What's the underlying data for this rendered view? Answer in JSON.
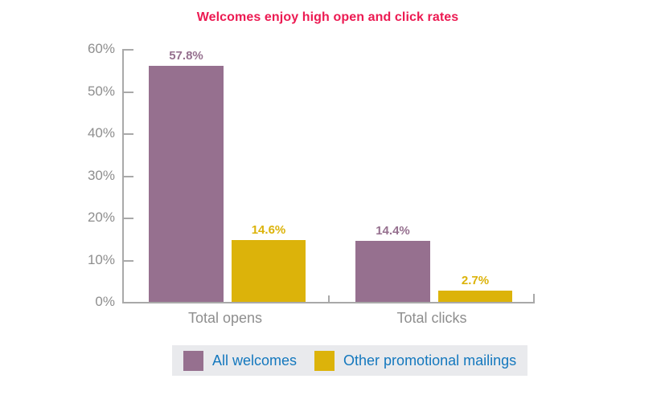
{
  "chart_data": {
    "type": "bar",
    "title": "Welcomes enjoy high open and click rates",
    "categories": [
      "Total opens",
      "Total clicks"
    ],
    "series": [
      {
        "name": "All welcomes",
        "color": "#96708F",
        "values": [
          57.8,
          14.4
        ],
        "display": [
          "57.8%",
          "14.4%"
        ]
      },
      {
        "name": "Other promotional mailings",
        "color": "#DCB30A",
        "values": [
          14.6,
          2.7
        ],
        "display": [
          "14.6%",
          "2.7%"
        ]
      }
    ],
    "xlabel": "",
    "ylabel": "",
    "ylim": [
      0,
      60
    ],
    "y_ticks": [
      0,
      10,
      20,
      30,
      40,
      50,
      60
    ],
    "y_tick_suffix": "%",
    "grid": false,
    "legend_position": "bottom"
  },
  "styles": {
    "title_color": "#EC1A52",
    "axis_color": "#A9A9A9",
    "tick_label_color": "#8E8E8E",
    "legend_background": "#E9EAED",
    "legend_text_color": "#1478BE"
  }
}
